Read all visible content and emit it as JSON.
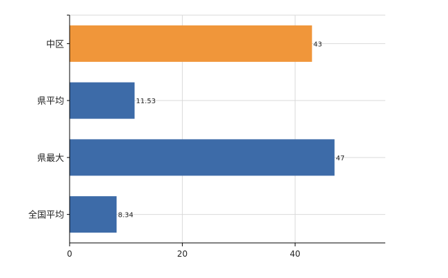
{
  "chart_data": {
    "type": "bar",
    "orientation": "horizontal",
    "categories": [
      "中区",
      "県平均",
      "県最大",
      "全国平均"
    ],
    "values": [
      43,
      11.53,
      47,
      8.34
    ],
    "value_labels": [
      "43",
      "11.53",
      "47",
      "8.34"
    ],
    "bar_colors": [
      "#F0963A",
      "#3D6BA8",
      "#3D6BA8",
      "#3D6BA8"
    ],
    "xlim": [
      0,
      56
    ],
    "xticks": [
      0,
      20,
      40
    ],
    "x_grid": true,
    "y_grid": true,
    "title": "",
    "xlabel": "",
    "ylabel": "",
    "legend": "none"
  }
}
